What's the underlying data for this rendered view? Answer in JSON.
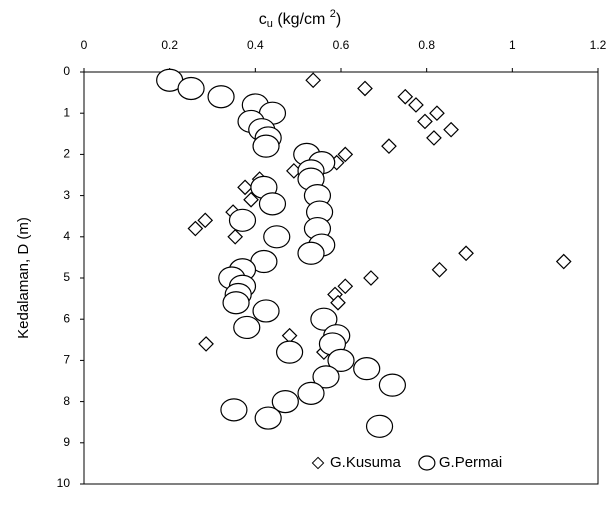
{
  "chart_data": {
    "type": "scatter",
    "xlabel": [
      "c",
      "u",
      " (kg/cm ",
      "2",
      ")"
    ],
    "ylabel": "Kedalaman, D (m)",
    "xlim": [
      0,
      1.2
    ],
    "xticks": [
      0,
      0.2,
      0.4,
      0.6,
      0.8,
      1,
      1.2
    ],
    "ylim": [
      10,
      0
    ],
    "yticks": [
      0,
      1,
      2,
      3,
      4,
      5,
      6,
      7,
      8,
      9,
      10
    ],
    "legend": "lower right",
    "series": [
      {
        "name": "G.Kusuma",
        "marker": "diamond",
        "color": "#000000",
        "x": [
          0.535,
          0.656,
          0.75,
          0.775,
          0.824,
          0.796,
          0.857,
          0.817,
          0.712,
          0.61,
          0.59,
          0.49,
          0.41,
          0.376,
          0.39,
          0.348,
          0.283,
          0.26,
          0.353,
          0.892,
          1.12,
          0.83,
          0.67,
          0.61,
          0.586,
          0.593,
          0.48,
          0.285,
          0.56
        ],
        "values": [
          0.2,
          0.4,
          0.6,
          0.8,
          1.0,
          1.2,
          1.4,
          1.6,
          1.8,
          2.0,
          2.2,
          2.4,
          2.6,
          2.8,
          3.1,
          3.4,
          3.6,
          3.8,
          4.0,
          4.4,
          4.6,
          4.8,
          5.0,
          5.2,
          5.4,
          5.6,
          6.4,
          6.6,
          6.8
        ]
      },
      {
        "name": "G.Permai",
        "marker": "circle",
        "color": "#000000",
        "x": [
          0.2,
          0.25,
          0.32,
          0.4,
          0.44,
          0.39,
          0.415,
          0.43,
          0.425,
          0.52,
          0.555,
          0.53,
          0.53,
          0.42,
          0.545,
          0.44,
          0.55,
          0.37,
          0.545,
          0.45,
          0.555,
          0.53,
          0.42,
          0.37,
          0.345,
          0.37,
          0.36,
          0.355,
          0.425,
          0.56,
          0.38,
          0.59,
          0.58,
          0.48,
          0.6,
          0.66,
          0.565,
          0.72,
          0.53,
          0.47,
          0.35,
          0.43,
          0.69
        ],
        "values": [
          0.2,
          0.4,
          0.6,
          0.8,
          1.0,
          1.2,
          1.4,
          1.6,
          1.8,
          2.0,
          2.2,
          2.4,
          2.6,
          2.8,
          3.0,
          3.2,
          3.4,
          3.6,
          3.8,
          4.0,
          4.2,
          4.4,
          4.6,
          4.8,
          5.0,
          5.2,
          5.4,
          5.6,
          5.8,
          6.0,
          6.2,
          6.4,
          6.6,
          6.8,
          7.0,
          7.2,
          7.4,
          7.6,
          7.8,
          8.0,
          8.2,
          8.4,
          8.6
        ]
      }
    ]
  }
}
